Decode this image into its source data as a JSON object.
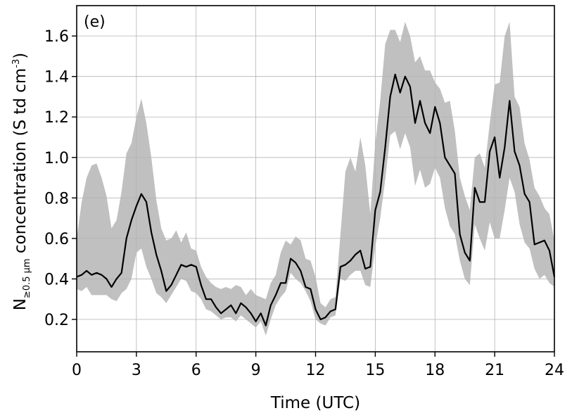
{
  "chart_data": {
    "type": "line",
    "panel_label": "(e)",
    "xlabel": "Time (UTC)",
    "ylabel": {
      "prefix": "N",
      "subscript": "≥0.5 μm",
      "mid": " concentration (S td cm",
      "superscript": "-3",
      "suffix": ")"
    },
    "xlim": [
      0,
      24
    ],
    "ylim": [
      0.04,
      1.75
    ],
    "xticks": [
      0,
      3,
      6,
      9,
      12,
      15,
      18,
      21,
      24
    ],
    "yticks": [
      0.2,
      0.4,
      0.6,
      0.8,
      1.0,
      1.2,
      1.4,
      1.6
    ],
    "ytick_labels": [
      "0.2",
      "0.4",
      "0.6",
      "0.8",
      "1.0",
      "1.2",
      "1.4",
      "1.6"
    ],
    "grid": true,
    "colors": {
      "line": "#000000",
      "band": "#c0c0c0",
      "grid": "#b3b3b3"
    },
    "series": [
      {
        "role": "median line",
        "x": [
          0,
          0.25,
          0.5,
          0.75,
          1,
          1.25,
          1.5,
          1.75,
          2,
          2.25,
          2.5,
          2.75,
          3,
          3.25,
          3.5,
          3.75,
          4,
          4.25,
          4.5,
          4.75,
          5,
          5.25,
          5.5,
          5.75,
          6,
          6.25,
          6.5,
          6.75,
          7,
          7.25,
          7.5,
          7.75,
          8,
          8.25,
          8.5,
          8.75,
          9,
          9.25,
          9.5,
          9.75,
          10,
          10.25,
          10.5,
          10.75,
          11,
          11.25,
          11.5,
          11.75,
          12,
          12.25,
          12.5,
          12.75,
          13,
          13.25,
          13.5,
          13.75,
          14,
          14.25,
          14.5,
          14.75,
          15,
          15.25,
          15.5,
          15.75,
          16,
          16.25,
          16.5,
          16.75,
          17,
          17.25,
          17.5,
          17.75,
          18,
          18.25,
          18.5,
          18.75,
          19,
          19.25,
          19.5,
          19.75,
          20,
          20.25,
          20.5,
          20.75,
          21,
          21.25,
          21.5,
          21.75,
          22,
          22.25,
          22.5,
          22.75,
          23,
          23.25,
          23.5,
          23.75,
          24
        ],
        "y": [
          0.41,
          0.42,
          0.44,
          0.42,
          0.43,
          0.42,
          0.4,
          0.36,
          0.4,
          0.43,
          0.6,
          0.69,
          0.76,
          0.82,
          0.78,
          0.63,
          0.52,
          0.44,
          0.34,
          0.37,
          0.42,
          0.47,
          0.46,
          0.47,
          0.46,
          0.37,
          0.3,
          0.3,
          0.26,
          0.23,
          0.25,
          0.27,
          0.23,
          0.28,
          0.26,
          0.23,
          0.19,
          0.23,
          0.17,
          0.27,
          0.32,
          0.38,
          0.38,
          0.5,
          0.48,
          0.44,
          0.36,
          0.35,
          0.25,
          0.2,
          0.21,
          0.24,
          0.25,
          0.46,
          0.47,
          0.49,
          0.52,
          0.54,
          0.45,
          0.46,
          0.74,
          0.83,
          1.05,
          1.3,
          1.41,
          1.32,
          1.4,
          1.35,
          1.17,
          1.28,
          1.17,
          1.12,
          1.25,
          1.17,
          1.0,
          0.96,
          0.92,
          0.62,
          0.53,
          0.49,
          0.85,
          0.78,
          0.78,
          1.03,
          1.1,
          0.9,
          1.05,
          1.28,
          1.03,
          0.96,
          0.82,
          0.78,
          0.57,
          0.58,
          0.59,
          0.54,
          0.41
        ]
      },
      {
        "role": "range band",
        "x": [
          0,
          0.25,
          0.5,
          0.75,
          1,
          1.25,
          1.5,
          1.75,
          2,
          2.25,
          2.5,
          2.75,
          3,
          3.25,
          3.5,
          3.75,
          4,
          4.25,
          4.5,
          4.75,
          5,
          5.25,
          5.5,
          5.75,
          6,
          6.25,
          6.5,
          6.75,
          7,
          7.25,
          7.5,
          7.75,
          8,
          8.25,
          8.5,
          8.75,
          9,
          9.25,
          9.5,
          9.75,
          10,
          10.25,
          10.5,
          10.75,
          11,
          11.25,
          11.5,
          11.75,
          12,
          12.25,
          12.5,
          12.75,
          13,
          13.25,
          13.5,
          13.75,
          14,
          14.25,
          14.5,
          14.75,
          15,
          15.25,
          15.5,
          15.75,
          16,
          16.25,
          16.5,
          16.75,
          17,
          17.25,
          17.5,
          17.75,
          18,
          18.25,
          18.5,
          18.75,
          19,
          19.25,
          19.5,
          19.75,
          20,
          20.25,
          20.5,
          20.75,
          21,
          21.25,
          21.5,
          21.75,
          22,
          22.25,
          22.5,
          22.75,
          23,
          23.25,
          23.5,
          23.75,
          24
        ],
        "upper": [
          0.6,
          0.78,
          0.9,
          0.96,
          0.97,
          0.9,
          0.81,
          0.65,
          0.69,
          0.83,
          1.02,
          1.07,
          1.2,
          1.29,
          1.17,
          1.0,
          0.79,
          0.65,
          0.59,
          0.6,
          0.64,
          0.58,
          0.63,
          0.55,
          0.54,
          0.46,
          0.41,
          0.38,
          0.36,
          0.35,
          0.36,
          0.35,
          0.37,
          0.36,
          0.32,
          0.35,
          0.32,
          0.31,
          0.3,
          0.38,
          0.42,
          0.53,
          0.59,
          0.57,
          0.61,
          0.59,
          0.5,
          0.49,
          0.41,
          0.28,
          0.26,
          0.3,
          0.31,
          0.62,
          0.93,
          1.0,
          0.93,
          1.1,
          0.96,
          0.72,
          1.07,
          1.28,
          1.56,
          1.63,
          1.63,
          1.57,
          1.67,
          1.6,
          1.47,
          1.5,
          1.43,
          1.43,
          1.37,
          1.34,
          1.27,
          1.28,
          1.13,
          0.9,
          0.81,
          0.74,
          1.0,
          1.02,
          0.95,
          1.17,
          1.36,
          1.37,
          1.6,
          1.67,
          1.3,
          1.25,
          1.07,
          0.99,
          0.85,
          0.81,
          0.75,
          0.72,
          0.59
        ],
        "lower": [
          0.35,
          0.34,
          0.36,
          0.32,
          0.32,
          0.32,
          0.32,
          0.3,
          0.29,
          0.33,
          0.35,
          0.4,
          0.53,
          0.55,
          0.46,
          0.4,
          0.33,
          0.31,
          0.28,
          0.32,
          0.36,
          0.4,
          0.39,
          0.34,
          0.33,
          0.3,
          0.25,
          0.24,
          0.22,
          0.2,
          0.21,
          0.21,
          0.19,
          0.22,
          0.2,
          0.18,
          0.16,
          0.19,
          0.12,
          0.2,
          0.27,
          0.31,
          0.34,
          0.43,
          0.4,
          0.38,
          0.34,
          0.29,
          0.2,
          0.18,
          0.17,
          0.21,
          0.22,
          0.4,
          0.39,
          0.42,
          0.44,
          0.44,
          0.37,
          0.36,
          0.56,
          0.7,
          0.89,
          1.11,
          1.13,
          1.04,
          1.12,
          1.05,
          0.86,
          0.94,
          0.85,
          0.87,
          0.95,
          0.9,
          0.75,
          0.66,
          0.62,
          0.49,
          0.4,
          0.37,
          0.67,
          0.6,
          0.54,
          0.68,
          0.6,
          0.6,
          0.74,
          0.9,
          0.83,
          0.67,
          0.58,
          0.55,
          0.45,
          0.4,
          0.42,
          0.38,
          0.36
        ]
      }
    ]
  }
}
